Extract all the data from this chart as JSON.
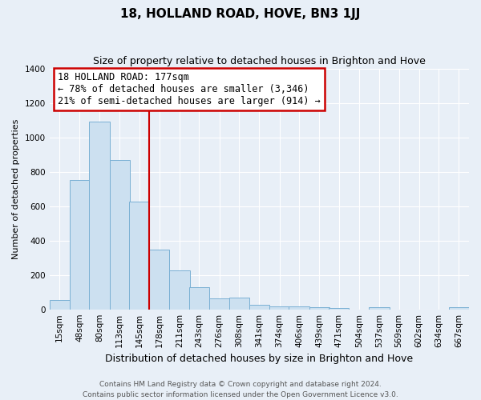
{
  "title": "18, HOLLAND ROAD, HOVE, BN3 1JJ",
  "subtitle": "Size of property relative to detached houses in Brighton and Hove",
  "xlabel": "Distribution of detached houses by size in Brighton and Hove",
  "ylabel": "Number of detached properties",
  "footer_line1": "Contains HM Land Registry data © Crown copyright and database right 2024.",
  "footer_line2": "Contains public sector information licensed under the Open Government Licence v3.0.",
  "bar_labels": [
    "15sqm",
    "48sqm",
    "80sqm",
    "113sqm",
    "145sqm",
    "178sqm",
    "211sqm",
    "243sqm",
    "276sqm",
    "308sqm",
    "341sqm",
    "374sqm",
    "406sqm",
    "439sqm",
    "471sqm",
    "504sqm",
    "537sqm",
    "569sqm",
    "602sqm",
    "634sqm",
    "667sqm"
  ],
  "bar_values": [
    55,
    750,
    1090,
    870,
    625,
    345,
    225,
    130,
    65,
    70,
    25,
    18,
    15,
    12,
    10,
    0,
    12,
    0,
    0,
    0,
    12
  ],
  "left_edges": [
    15,
    48,
    80,
    113,
    145,
    178,
    211,
    243,
    276,
    308,
    341,
    374,
    406,
    439,
    471,
    504,
    537,
    569,
    602,
    634,
    667
  ],
  "bar_color": "#cce0f0",
  "bar_edge_color": "#7ab0d4",
  "vline_x": 178,
  "vline_color": "#cc0000",
  "ann_title": "18 HOLLAND ROAD: 177sqm",
  "ann_line1": "← 78% of detached houses are smaller (3,346)",
  "ann_line2": "21% of semi-detached houses are larger (914) →",
  "ann_box_edge": "#cc0000",
  "ann_box_fill": "#ffffff",
  "ylim": [
    0,
    1400
  ],
  "yticks": [
    0,
    200,
    400,
    600,
    800,
    1000,
    1200,
    1400
  ],
  "bg_color": "#e8eff7",
  "grid_color": "#ffffff",
  "bin_width": 33,
  "title_fontsize": 11,
  "subtitle_fontsize": 9,
  "xlabel_fontsize": 9,
  "ylabel_fontsize": 8,
  "tick_fontsize": 7.5,
  "ann_fontsize": 8.5,
  "footer_fontsize": 6.5
}
